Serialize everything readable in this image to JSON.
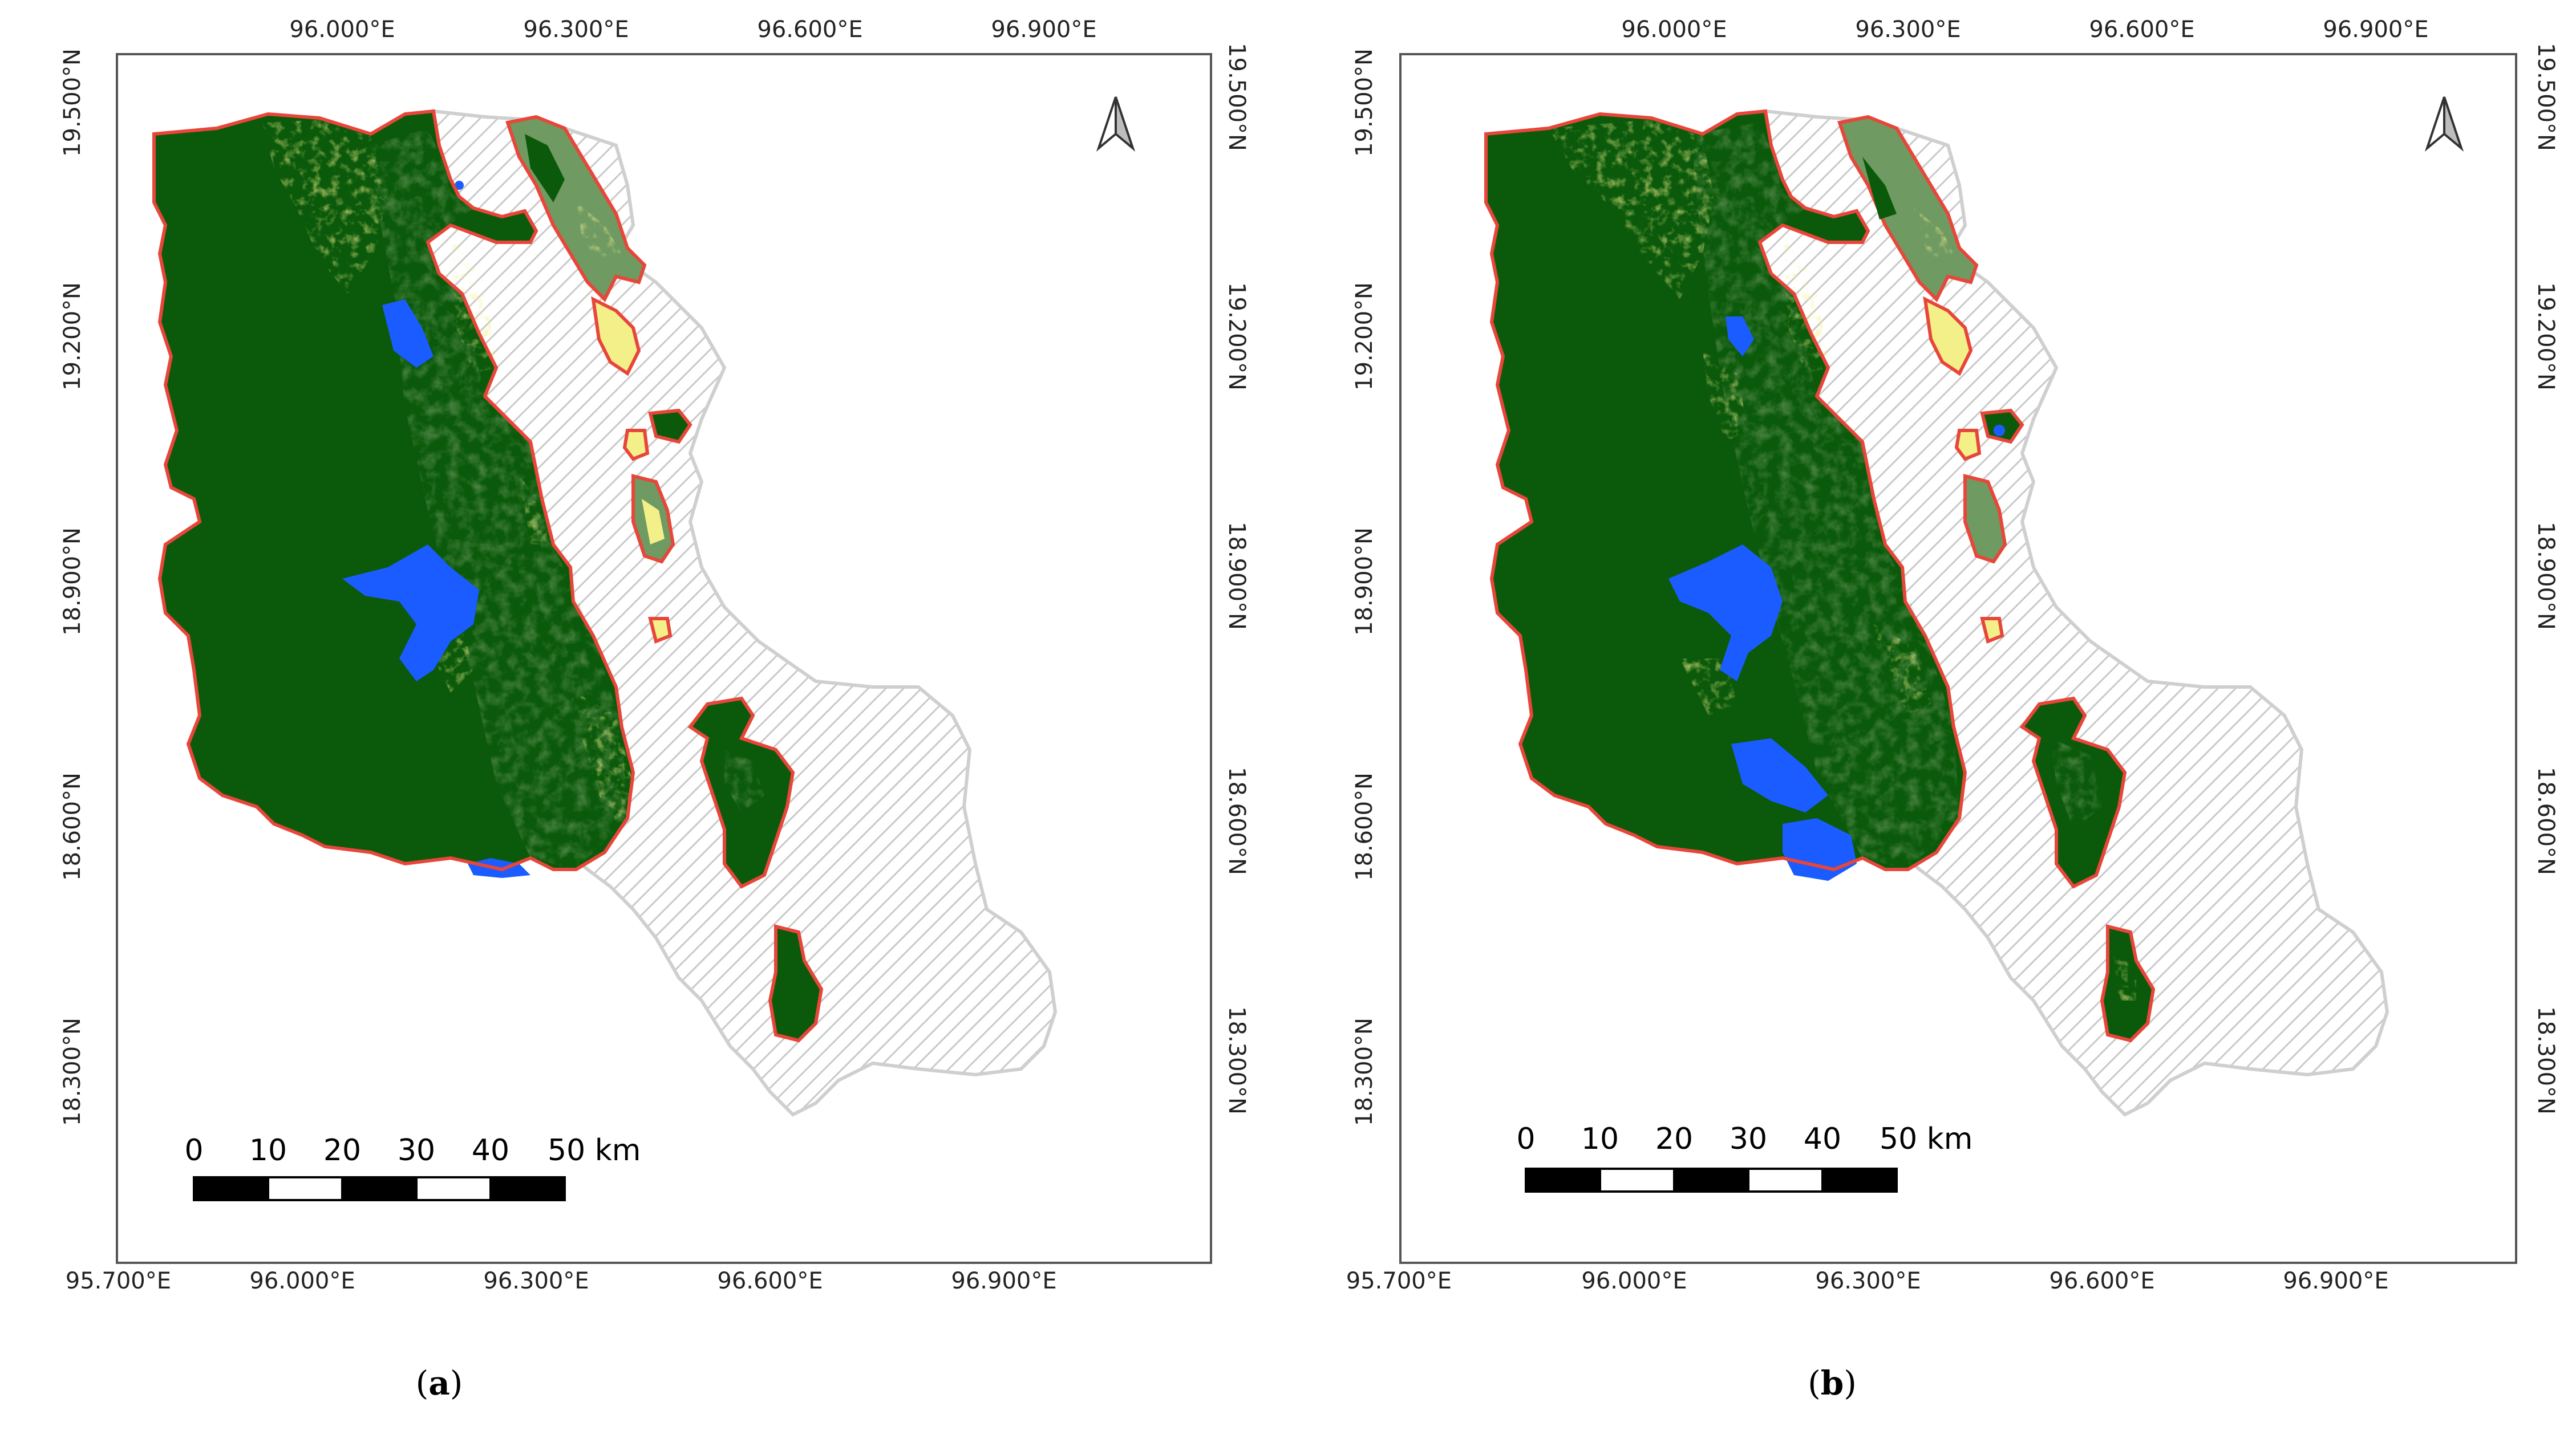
{
  "panels": [
    {
      "id": "a",
      "caption_open": "(",
      "caption_letter": "a",
      "caption_close": ")",
      "top_x_ticks": [
        "96.000°E",
        "96.300°E",
        "96.600°E",
        "96.900°E"
      ],
      "bottom_x_ticks": [
        "95.700°E",
        "96.000°E",
        "96.300°E",
        "96.600°E",
        "96.900°E"
      ],
      "left_y_ticks": [
        "19.500°N",
        "19.200°N",
        "18.900°N",
        "18.600°N",
        "18.300°N"
      ],
      "right_y_ticks": [
        "19.500°N",
        "19.200°N",
        "18.900°N",
        "18.600°N",
        "18.300°N"
      ],
      "scale_labels": [
        "0",
        "10",
        "20",
        "30",
        "40",
        "50 km"
      ]
    },
    {
      "id": "b",
      "caption_open": "(",
      "caption_letter": "b",
      "caption_close": ")",
      "top_x_ticks": [
        "96.000°E",
        "96.300°E",
        "96.600°E",
        "96.900°E"
      ],
      "bottom_x_ticks": [
        "95.700°E",
        "96.000°E",
        "96.300°E",
        "96.600°E",
        "96.900°E"
      ],
      "left_y_ticks": [
        "19.500°N",
        "19.200°N",
        "18.900°N",
        "18.600°N",
        "18.300°N"
      ],
      "right_y_ticks": [
        "19.500°N",
        "19.200°N",
        "18.900°N",
        "18.600°N",
        "18.300°N"
      ],
      "scale_labels": [
        "0",
        "10",
        "20",
        "30",
        "40",
        "50 km"
      ]
    }
  ],
  "colors": {
    "dense_forest": "#0b5a0b",
    "mixed_forest": "#6f9a62",
    "open_land": "#f3f08a",
    "water": "#1a5cff",
    "boundary": "#e8463a",
    "outside_hatch": "#c6c6c6",
    "frame": "#555555"
  },
  "icons": {
    "north_arrow": "north-arrow-icon"
  }
}
